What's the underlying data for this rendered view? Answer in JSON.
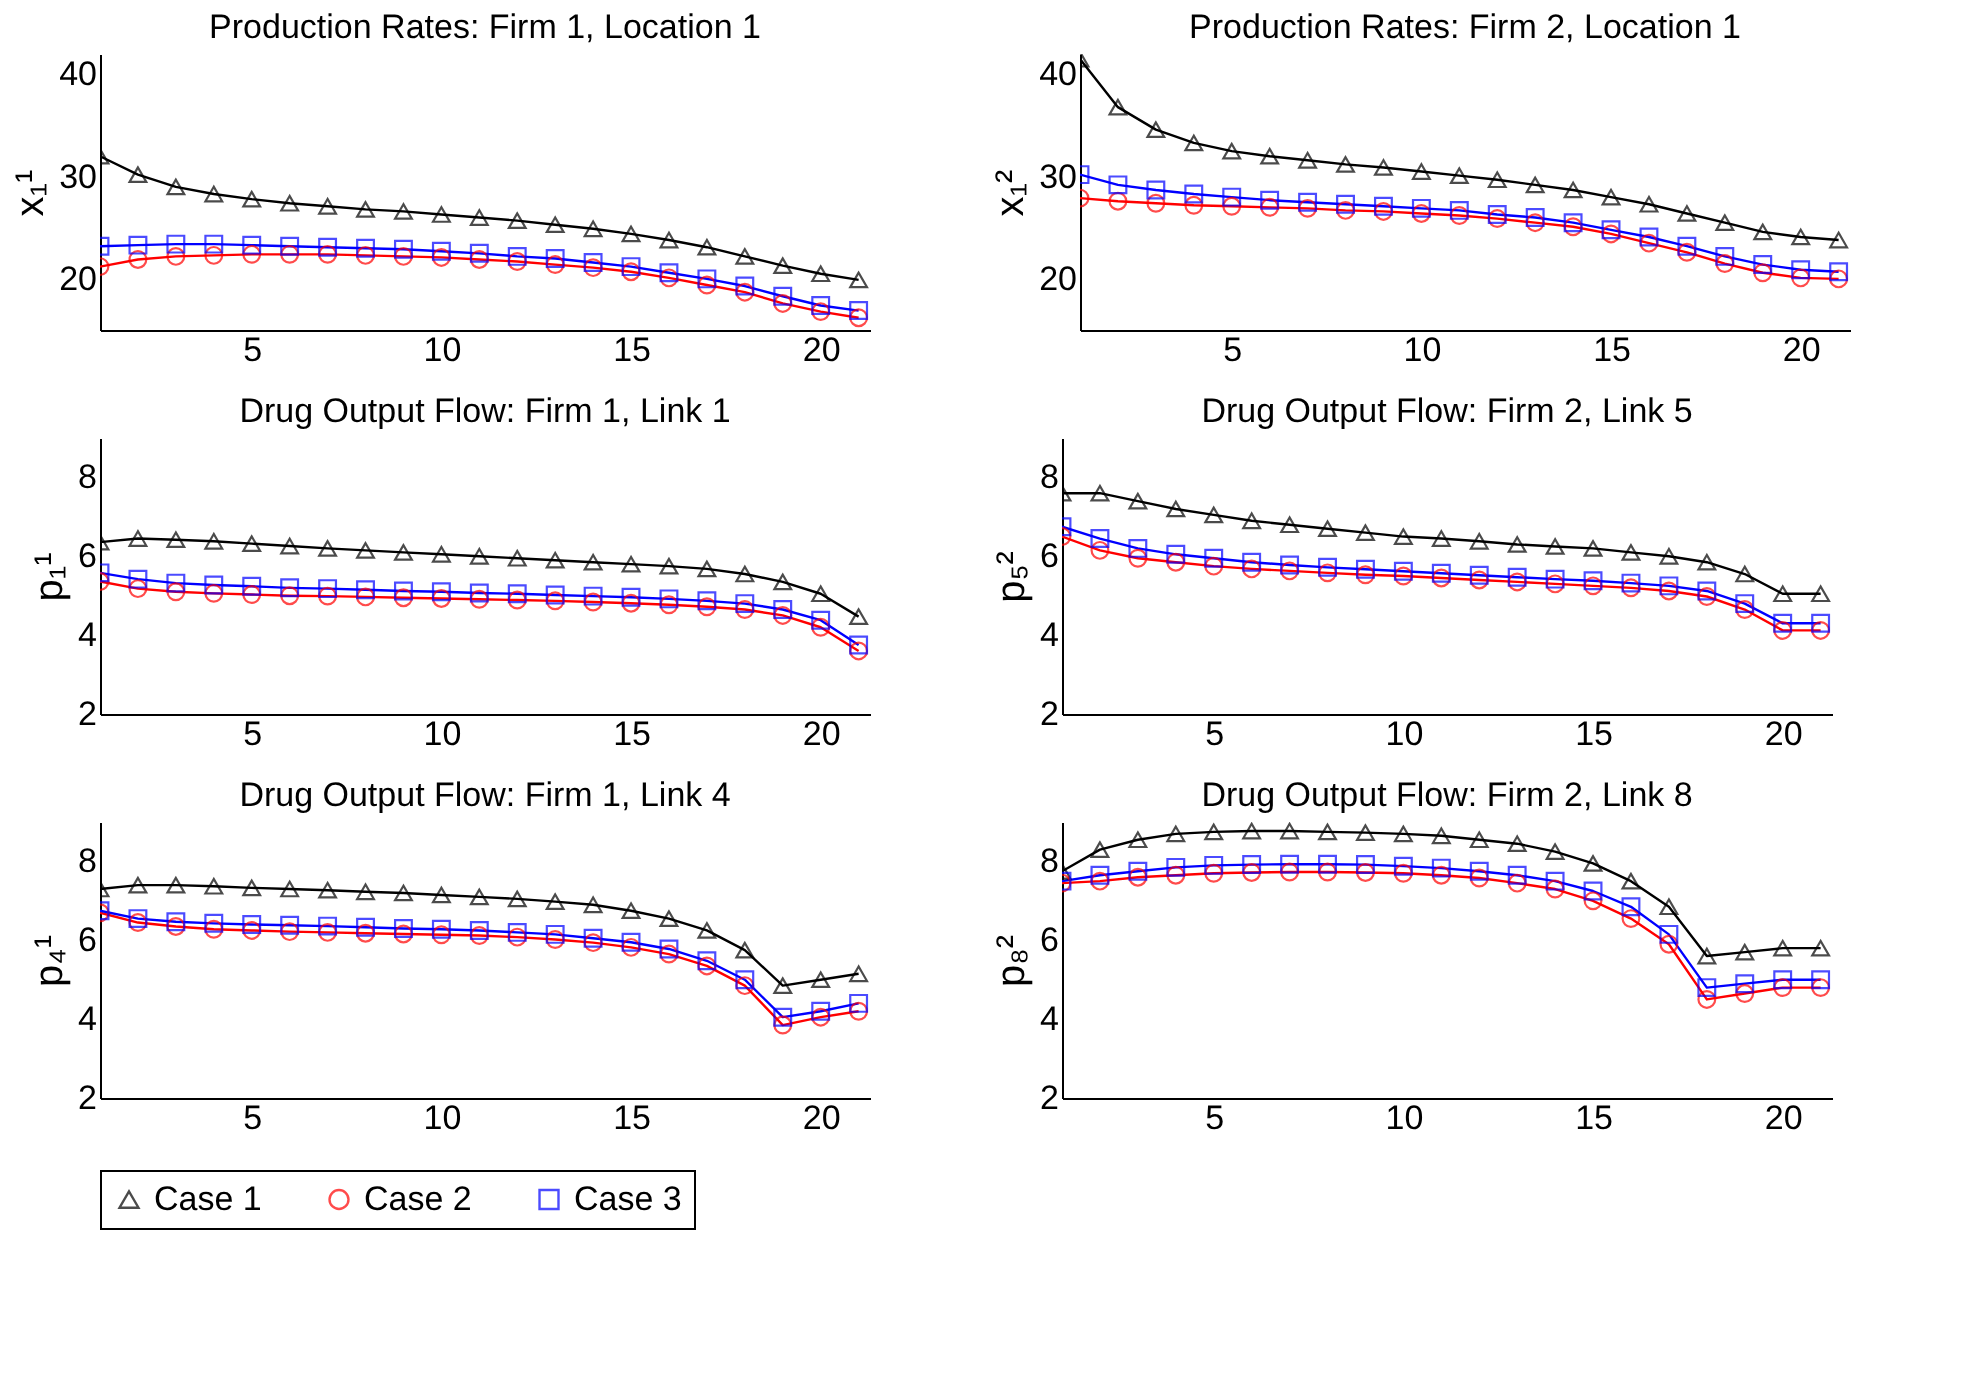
{
  "chart_data": [
    {
      "type": "line",
      "title": "Production Rates: Firm 1, Location 1",
      "ylabel": "x₁¹",
      "x": [
        1,
        2,
        3,
        4,
        5,
        6,
        7,
        8,
        9,
        10,
        11,
        12,
        13,
        14,
        15,
        16,
        17,
        18,
        19,
        20,
        21
      ],
      "xlim": [
        1,
        21.3
      ],
      "xticks": [
        5,
        10,
        15,
        20
      ],
      "ylim": [
        15,
        42
      ],
      "yticks": [
        20,
        30,
        40
      ],
      "grid": false,
      "legend": "bottom",
      "series": [
        {
          "name": "Case 1",
          "color": "#000000",
          "marker": "triangle",
          "values": [
            32,
            30.2,
            29,
            28.3,
            27.8,
            27.4,
            27.1,
            26.8,
            26.6,
            26.3,
            26.0,
            25.7,
            25.3,
            24.9,
            24.4,
            23.8,
            23.1,
            22.2,
            21.3,
            20.5,
            19.9
          ]
        },
        {
          "name": "Case 2",
          "color": "#ff0000",
          "marker": "circle",
          "values": [
            21.2,
            21.9,
            22.2,
            22.3,
            22.4,
            22.4,
            22.4,
            22.3,
            22.2,
            22.1,
            21.9,
            21.7,
            21.4,
            21.1,
            20.7,
            20.1,
            19.4,
            18.7,
            17.6,
            16.8,
            16.2
          ]
        },
        {
          "name": "Case 3",
          "color": "#0000ff",
          "marker": "square",
          "values": [
            23.2,
            23.3,
            23.4,
            23.4,
            23.3,
            23.2,
            23.1,
            23.0,
            22.9,
            22.7,
            22.5,
            22.2,
            22.0,
            21.6,
            21.2,
            20.6,
            20.0,
            19.3,
            18.3,
            17.4,
            16.9
          ]
        }
      ]
    },
    {
      "type": "line",
      "title": "Production Rates: Firm 2, Location 1",
      "ylabel": "x₁²",
      "x": [
        1,
        2,
        3,
        4,
        5,
        6,
        7,
        8,
        9,
        10,
        11,
        12,
        13,
        14,
        15,
        16,
        17,
        18,
        19,
        20,
        21
      ],
      "xlim": [
        1,
        21.3
      ],
      "xticks": [
        5,
        10,
        15,
        20
      ],
      "ylim": [
        15,
        42
      ],
      "yticks": [
        20,
        30,
        40
      ],
      "grid": false,
      "legend": "bottom",
      "series": [
        {
          "name": "Case 1",
          "color": "#000000",
          "marker": "triangle",
          "values": [
            41.5,
            36.8,
            34.6,
            33.3,
            32.5,
            32.0,
            31.6,
            31.2,
            30.9,
            30.5,
            30.1,
            29.7,
            29.2,
            28.7,
            28.0,
            27.3,
            26.4,
            25.5,
            24.6,
            24.1,
            23.8
          ]
        },
        {
          "name": "Case 2",
          "color": "#ff0000",
          "marker": "circle",
          "values": [
            27.9,
            27.6,
            27.4,
            27.2,
            27.1,
            27.0,
            26.9,
            26.7,
            26.6,
            26.4,
            26.2,
            25.9,
            25.5,
            25.1,
            24.4,
            23.5,
            22.6,
            21.5,
            20.6,
            20.1,
            20.0
          ]
        },
        {
          "name": "Case 3",
          "color": "#0000ff",
          "marker": "square",
          "values": [
            30.2,
            29.2,
            28.7,
            28.3,
            28.0,
            27.7,
            27.5,
            27.3,
            27.1,
            26.9,
            26.7,
            26.3,
            26.0,
            25.5,
            24.8,
            24.1,
            23.2,
            22.2,
            21.4,
            20.9,
            20.7
          ]
        }
      ]
    },
    {
      "type": "line",
      "title": "Drug Output Flow: Firm 1, Link 1",
      "ylabel": "p₁¹",
      "x": [
        1,
        2,
        3,
        4,
        5,
        6,
        7,
        8,
        9,
        10,
        11,
        12,
        13,
        14,
        15,
        16,
        17,
        18,
        19,
        20,
        21
      ],
      "xlim": [
        1,
        21.3
      ],
      "xticks": [
        5,
        10,
        15,
        20
      ],
      "ylim": [
        2,
        9
      ],
      "yticks": [
        2,
        4,
        6,
        8
      ],
      "grid": false,
      "legend": "bottom",
      "series": [
        {
          "name": "Case 1",
          "color": "#000000",
          "marker": "triangle",
          "values": [
            6.36,
            6.45,
            6.42,
            6.38,
            6.32,
            6.26,
            6.2,
            6.15,
            6.1,
            6.05,
            6.0,
            5.95,
            5.9,
            5.85,
            5.8,
            5.75,
            5.68,
            5.55,
            5.35,
            5.05,
            4.47
          ]
        },
        {
          "name": "Case 2",
          "color": "#ff0000",
          "marker": "circle",
          "values": [
            5.36,
            5.18,
            5.1,
            5.06,
            5.03,
            5.0,
            4.99,
            4.97,
            4.95,
            4.93,
            4.91,
            4.89,
            4.87,
            4.84,
            4.81,
            4.77,
            4.72,
            4.65,
            4.5,
            4.2,
            3.6
          ]
        },
        {
          "name": "Case 3",
          "color": "#0000ff",
          "marker": "square",
          "values": [
            5.58,
            5.42,
            5.32,
            5.27,
            5.24,
            5.2,
            5.18,
            5.15,
            5.12,
            5.1,
            5.07,
            5.05,
            5.02,
            4.99,
            4.96,
            4.92,
            4.87,
            4.8,
            4.65,
            4.38,
            3.75
          ]
        }
      ]
    },
    {
      "type": "line",
      "title": "Drug Output Flow: Firm 2, Link 5",
      "ylabel": "p₅²",
      "x": [
        1,
        2,
        3,
        4,
        5,
        6,
        7,
        8,
        9,
        10,
        11,
        12,
        13,
        14,
        15,
        16,
        17,
        18,
        19,
        20,
        21
      ],
      "xlim": [
        1,
        21.3
      ],
      "xticks": [
        5,
        10,
        15,
        20
      ],
      "ylim": [
        2,
        9
      ],
      "yticks": [
        2,
        4,
        6,
        8
      ],
      "grid": false,
      "legend": "bottom",
      "series": [
        {
          "name": "Case 1",
          "color": "#000000",
          "marker": "triangle",
          "values": [
            7.6,
            7.6,
            7.4,
            7.2,
            7.05,
            6.9,
            6.8,
            6.7,
            6.6,
            6.5,
            6.45,
            6.38,
            6.3,
            6.25,
            6.2,
            6.1,
            6.0,
            5.85,
            5.55,
            5.05,
            5.05
          ]
        },
        {
          "name": "Case 2",
          "color": "#ff0000",
          "marker": "circle",
          "values": [
            6.5,
            6.15,
            5.95,
            5.85,
            5.75,
            5.68,
            5.63,
            5.58,
            5.53,
            5.5,
            5.45,
            5.4,
            5.35,
            5.3,
            5.25,
            5.2,
            5.12,
            4.98,
            4.65,
            4.12,
            4.12
          ]
        },
        {
          "name": "Case 3",
          "color": "#0000ff",
          "marker": "square",
          "values": [
            6.75,
            6.45,
            6.2,
            6.05,
            5.95,
            5.85,
            5.78,
            5.72,
            5.67,
            5.62,
            5.57,
            5.52,
            5.47,
            5.42,
            5.38,
            5.32,
            5.25,
            5.12,
            4.8,
            4.3,
            4.3
          ]
        }
      ]
    },
    {
      "type": "line",
      "title": "Drug Output Flow: Firm 1, Link 4",
      "ylabel": "p₄¹",
      "x": [
        1,
        2,
        3,
        4,
        5,
        6,
        7,
        8,
        9,
        10,
        11,
        12,
        13,
        14,
        15,
        16,
        17,
        18,
        19,
        20,
        21
      ],
      "xlim": [
        1,
        21.3
      ],
      "xticks": [
        5,
        10,
        15,
        20
      ],
      "ylim": [
        2,
        9
      ],
      "yticks": [
        2,
        4,
        6,
        8
      ],
      "grid": false,
      "legend": "bottom",
      "series": [
        {
          "name": "Case 1",
          "color": "#000000",
          "marker": "triangle",
          "values": [
            7.3,
            7.4,
            7.4,
            7.37,
            7.33,
            7.3,
            7.27,
            7.23,
            7.2,
            7.15,
            7.1,
            7.05,
            6.98,
            6.9,
            6.75,
            6.55,
            6.25,
            5.75,
            4.85,
            5.0,
            5.15
          ]
        },
        {
          "name": "Case 2",
          "color": "#ff0000",
          "marker": "circle",
          "values": [
            6.7,
            6.45,
            6.35,
            6.28,
            6.25,
            6.22,
            6.2,
            6.18,
            6.16,
            6.14,
            6.12,
            6.08,
            6.02,
            5.94,
            5.82,
            5.65,
            5.35,
            4.85,
            3.85,
            4.05,
            4.2
          ]
        },
        {
          "name": "Case 3",
          "color": "#0000ff",
          "marker": "square",
          "values": [
            6.75,
            6.55,
            6.47,
            6.43,
            6.4,
            6.38,
            6.36,
            6.33,
            6.3,
            6.28,
            6.25,
            6.2,
            6.15,
            6.05,
            5.95,
            5.78,
            5.48,
            5.0,
            4.05,
            4.2,
            4.4
          ]
        }
      ]
    },
    {
      "type": "line",
      "title": "Drug Output Flow: Firm 2, Link 8",
      "ylabel": "p₈²",
      "x": [
        1,
        2,
        3,
        4,
        5,
        6,
        7,
        8,
        9,
        10,
        11,
        12,
        13,
        14,
        15,
        16,
        17,
        18,
        19,
        20,
        21
      ],
      "xlim": [
        1,
        21.3
      ],
      "xticks": [
        5,
        10,
        15,
        20
      ],
      "ylim": [
        2,
        9
      ],
      "yticks": [
        2,
        4,
        6,
        8
      ],
      "grid": false,
      "legend": "bottom",
      "series": [
        {
          "name": "Case 1",
          "color": "#000000",
          "marker": "triangle",
          "values": [
            7.75,
            8.3,
            8.55,
            8.7,
            8.75,
            8.77,
            8.77,
            8.75,
            8.73,
            8.7,
            8.65,
            8.55,
            8.45,
            8.25,
            7.95,
            7.5,
            6.85,
            5.6,
            5.7,
            5.8,
            5.8
          ]
        },
        {
          "name": "Case 2",
          "color": "#ff0000",
          "marker": "circle",
          "values": [
            7.45,
            7.5,
            7.6,
            7.65,
            7.7,
            7.72,
            7.73,
            7.73,
            7.72,
            7.7,
            7.65,
            7.58,
            7.45,
            7.3,
            7.0,
            6.55,
            5.9,
            4.5,
            4.65,
            4.8,
            4.8
          ]
        },
        {
          "name": "Case 3",
          "color": "#0000ff",
          "marker": "square",
          "values": [
            7.5,
            7.65,
            7.75,
            7.85,
            7.9,
            7.92,
            7.93,
            7.93,
            7.92,
            7.88,
            7.83,
            7.75,
            7.65,
            7.5,
            7.25,
            6.85,
            6.15,
            4.8,
            4.9,
            5.0,
            5.0
          ]
        }
      ]
    }
  ]
}
